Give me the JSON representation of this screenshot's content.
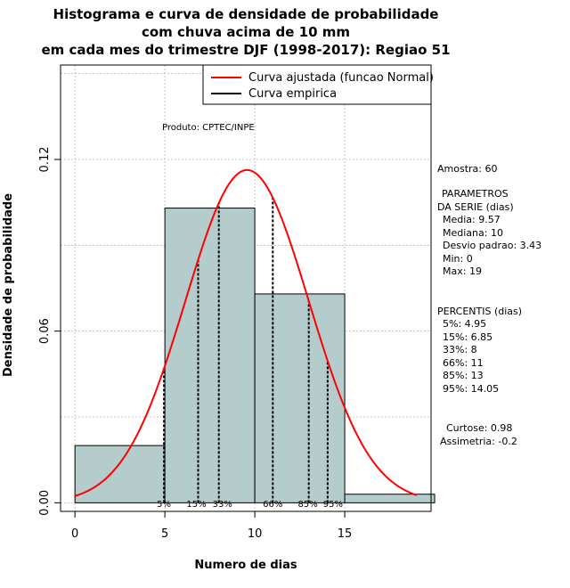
{
  "chart_data": {
    "type": "bar",
    "title": [
      "Histograma e curva de densidade de probabilidade",
      "com chuva acima de 10 mm",
      "em cada mes do trimestre DJF (1998-2017): Regiao 51"
    ],
    "xlabel": "Numero de dias",
    "ylabel": "Densidade de probabilidade",
    "xlim": [
      -0.8,
      19.8
    ],
    "ylim": [
      -0.003,
      0.153
    ],
    "x_ticks": [
      0,
      5,
      10,
      15
    ],
    "y_ticks": [
      0.0,
      0.06,
      0.12
    ],
    "y_tick_labels": [
      "0.00",
      "0.06",
      "0.12"
    ],
    "grid": true,
    "bins": [
      {
        "start": 0,
        "end": 5,
        "density": 0.02
      },
      {
        "start": 5,
        "end": 10,
        "density": 0.103
      },
      {
        "start": 10,
        "end": 15,
        "density": 0.073
      },
      {
        "start": 15,
        "end": 20,
        "density": 0.003
      }
    ],
    "fit_curve": {
      "name": "Curva ajustada (funcao Normal)",
      "color": "#ff0000",
      "mean": 9.57,
      "sd": 3.43,
      "x_range": [
        0,
        19
      ]
    },
    "empirical_curve": {
      "name": "Curva empirica",
      "color": "#000000"
    },
    "bar_color": "#b4cccb",
    "percentile_lines": [
      {
        "label": "5%",
        "x": 4.95
      },
      {
        "label": "15%",
        "x": 6.85
      },
      {
        "label": "33%",
        "x": 8
      },
      {
        "label": "66%",
        "x": 11
      },
      {
        "label": "85%",
        "x": 13
      },
      {
        "label": "95%",
        "x": 14.05
      }
    ],
    "legend": {
      "placement": "top-right",
      "items": [
        "Curva ajustada (funcao Normal)",
        "Curva empirica"
      ]
    },
    "annotation": "Produto: CPTEC/INPE"
  },
  "side_panel": {
    "sample": "Amostra: 60",
    "params_title": "PARAMETROS",
    "params_subtitle": "DA SERIE (dias)",
    "mean": "Media: 9.57",
    "median": "Mediana: 10",
    "sd": "Desvio padrao: 3.43",
    "min": "Min: 0",
    "max": "Max: 19",
    "pct_title": "PERCENTIS (dias)",
    "p5": "5%: 4.95",
    "p15": "15%: 6.85",
    "p33": "33%: 8",
    "p66": "66%: 11",
    "p85": "85%: 13",
    "p95": "95%: 14.05",
    "kurtosis": "Curtose: 0.98",
    "skewness": "Assimetria: -0.2"
  }
}
